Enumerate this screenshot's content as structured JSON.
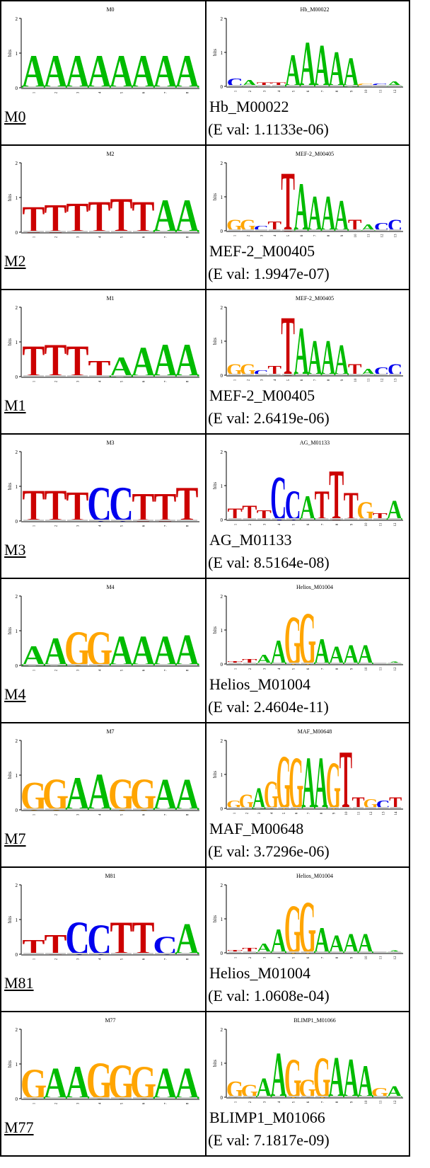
{
  "rows": [
    {
      "motif": {
        "title": "M0",
        "label": "M0",
        "letters": [
          [
            "A",
            1.0
          ],
          [
            "A",
            1.0
          ],
          [
            "A",
            1.0
          ],
          [
            "A",
            1.0
          ],
          [
            "A",
            1.0
          ],
          [
            "A",
            1.0
          ],
          [
            "A",
            1.0
          ],
          [
            "A",
            1.0
          ]
        ]
      },
      "match": {
        "title": "Hb_M00022",
        "name": "Hb_M00022",
        "eval": "(E val: 1.1133e-06)",
        "letters": [
          [
            "C",
            0.25
          ],
          [
            "A",
            0.2
          ],
          [
            "T",
            0.12
          ],
          [
            "T",
            0.12
          ],
          [
            "A",
            1.0
          ],
          [
            "A",
            1.4
          ],
          [
            "A",
            1.3
          ],
          [
            "A",
            1.1
          ],
          [
            "A",
            0.9
          ],
          [
            "G",
            0.1
          ],
          [
            "C",
            0.1
          ],
          [
            "A",
            0.15
          ]
        ]
      }
    },
    {
      "motif": {
        "title": "M2",
        "label": "M2",
        "letters": [
          [
            "T",
            0.8
          ],
          [
            "T",
            0.85
          ],
          [
            "T",
            0.9
          ],
          [
            "T",
            0.95
          ],
          [
            "T",
            1.05
          ],
          [
            "T",
            0.95
          ],
          [
            "A",
            1.0
          ],
          [
            "A",
            1.0
          ]
        ]
      },
      "match": {
        "title": "MEF-2_M00405",
        "name": "MEF-2_M00405",
        "eval": "(E val: 1.9947e-07)",
        "letters": [
          [
            "G",
            0.35
          ],
          [
            "G",
            0.35
          ],
          [
            "C",
            0.15
          ],
          [
            "T",
            0.3
          ],
          [
            "T",
            1.85
          ],
          [
            "A",
            1.5
          ],
          [
            "A",
            1.1
          ],
          [
            "A",
            1.1
          ],
          [
            "A",
            0.95
          ],
          [
            "T",
            0.35
          ],
          [
            "A",
            0.2
          ],
          [
            "C",
            0.25
          ],
          [
            "C",
            0.35
          ]
        ]
      }
    },
    {
      "motif": {
        "title": "M1",
        "label": "M1",
        "letters": [
          [
            "T",
            0.95
          ],
          [
            "T",
            1.0
          ],
          [
            "T",
            0.95
          ],
          [
            "T",
            0.5
          ],
          [
            "A",
            0.6
          ],
          [
            "A",
            0.9
          ],
          [
            "A",
            1.0
          ],
          [
            "A",
            1.0
          ]
        ]
      },
      "match": {
        "title": "MEF-2_M00405",
        "name": "MEF-2_M00405",
        "eval": "(E val: 2.6419e-06)",
        "letters": [
          [
            "G",
            0.35
          ],
          [
            "G",
            0.35
          ],
          [
            "C",
            0.15
          ],
          [
            "T",
            0.3
          ],
          [
            "T",
            1.85
          ],
          [
            "A",
            1.5
          ],
          [
            "A",
            1.1
          ],
          [
            "A",
            1.1
          ],
          [
            "A",
            0.95
          ],
          [
            "T",
            0.35
          ],
          [
            "A",
            0.2
          ],
          [
            "C",
            0.25
          ],
          [
            "C",
            0.35
          ]
        ]
      }
    },
    {
      "motif": {
        "title": "M3",
        "label": "M3",
        "letters": [
          [
            "T",
            0.95
          ],
          [
            "T",
            0.95
          ],
          [
            "T",
            0.9
          ],
          [
            "C",
            1.05
          ],
          [
            "C",
            1.05
          ],
          [
            "T",
            0.85
          ],
          [
            "T",
            0.85
          ],
          [
            "T",
            1.05
          ]
        ]
      },
      "match": {
        "title": "AG_M01133",
        "name": "AG_M01133",
        "eval": "(E val: 8.5164e-08)",
        "letters": [
          [
            "T",
            0.35
          ],
          [
            "T",
            0.45
          ],
          [
            "T",
            0.3
          ],
          [
            "C",
            1.35
          ],
          [
            "C",
            0.9
          ],
          [
            "A",
            0.75
          ],
          [
            "T",
            0.9
          ],
          [
            "T",
            1.55
          ],
          [
            "T",
            0.85
          ],
          [
            "G",
            0.55
          ],
          [
            "T",
            0.2
          ],
          [
            "A",
            0.6
          ]
        ]
      }
    },
    {
      "motif": {
        "title": "M4",
        "label": "M4",
        "letters": [
          [
            "A",
            0.6
          ],
          [
            "A",
            0.85
          ],
          [
            "G",
            1.05
          ],
          [
            "G",
            1.05
          ],
          [
            "A",
            0.9
          ],
          [
            "A",
            0.9
          ],
          [
            "A",
            0.9
          ],
          [
            "A",
            0.95
          ]
        ]
      },
      "match": {
        "title": "Helios_M01004",
        "name": "Helios_M01004",
        "eval": "(E val: 2.4604e-11)",
        "letters": [
          [
            "T",
            0.1
          ],
          [
            "T",
            0.15
          ],
          [
            "A",
            0.3
          ],
          [
            "A",
            0.75
          ],
          [
            "G",
            1.5
          ],
          [
            "G",
            1.6
          ],
          [
            "A",
            0.8
          ],
          [
            "A",
            0.55
          ],
          [
            "A",
            0.6
          ],
          [
            "A",
            0.6
          ],
          [
            "C",
            0.05
          ],
          [
            "A",
            0.08
          ]
        ]
      }
    },
    {
      "motif": {
        "title": "M7",
        "label": "M7",
        "letters": [
          [
            "G",
            0.85
          ],
          [
            "G",
            0.95
          ],
          [
            "A",
            1.0
          ],
          [
            "A",
            1.1
          ],
          [
            "G",
            0.95
          ],
          [
            "G",
            0.95
          ],
          [
            "A",
            0.95
          ],
          [
            "A",
            0.95
          ]
        ]
      },
      "match": {
        "title": "MAF_M00648",
        "name": "MAF_M00648",
        "eval": "(E val: 3.7296e-06)",
        "letters": [
          [
            "G",
            0.25
          ],
          [
            "G",
            0.45
          ],
          [
            "A",
            0.65
          ],
          [
            "G",
            0.85
          ],
          [
            "G",
            1.65
          ],
          [
            "G",
            1.6
          ],
          [
            "A",
            1.6
          ],
          [
            "A",
            1.6
          ],
          [
            "G",
            1.45
          ],
          [
            "T",
            1.8
          ],
          [
            "T",
            0.35
          ],
          [
            "G",
            0.3
          ],
          [
            "C",
            0.25
          ],
          [
            "T",
            0.35
          ]
        ]
      }
    },
    {
      "motif": {
        "title": "M81",
        "label": "M81",
        "letters": [
          [
            "T",
            0.45
          ],
          [
            "T",
            0.6
          ],
          [
            "C",
            1.0
          ],
          [
            "C",
            0.9
          ],
          [
            "T",
            1.0
          ],
          [
            "T",
            1.0
          ],
          [
            "C",
            0.55
          ],
          [
            "A",
            0.95
          ]
        ]
      },
      "match": {
        "title": "Helios_M01004",
        "name": "Helios_M01004",
        "eval": "(E val: 1.0608e-04)",
        "letters": [
          [
            "T",
            0.1
          ],
          [
            "T",
            0.15
          ],
          [
            "A",
            0.3
          ],
          [
            "A",
            0.75
          ],
          [
            "G",
            1.5
          ],
          [
            "G",
            1.6
          ],
          [
            "A",
            0.8
          ],
          [
            "A",
            0.55
          ],
          [
            "A",
            0.6
          ],
          [
            "A",
            0.6
          ],
          [
            "C",
            0.05
          ],
          [
            "A",
            0.08
          ]
        ]
      }
    },
    {
      "motif": {
        "title": "M77",
        "label": "M77",
        "letters": [
          [
            "G",
            0.9
          ],
          [
            "A",
            0.95
          ],
          [
            "A",
            1.0
          ],
          [
            "G",
            1.1
          ],
          [
            "G",
            1.05
          ],
          [
            "G",
            1.0
          ],
          [
            "A",
            0.95
          ],
          [
            "A",
            0.95
          ]
        ]
      },
      "match": {
        "title": "BLIMP1_M01066",
        "name": "BLIMP1_M01066",
        "eval": "(E val: 7.1817e-09)",
        "letters": [
          [
            "G",
            0.5
          ],
          [
            "G",
            0.4
          ],
          [
            "A",
            0.6
          ],
          [
            "A",
            1.4
          ],
          [
            "G",
            1.2
          ],
          [
            "G",
            0.55
          ],
          [
            "G",
            1.25
          ],
          [
            "A",
            1.25
          ],
          [
            "A",
            1.2
          ],
          [
            "A",
            1.0
          ],
          [
            "G",
            0.3
          ],
          [
            "A",
            0.35
          ]
        ]
      }
    }
  ],
  "colors": {
    "A": "#00bb00",
    "C": "#0000ee",
    "G": "#ffa500",
    "T": "#cc0000"
  },
  "axis": {
    "ylabel": "bits",
    "ticks": [
      "0",
      "1",
      "2"
    ]
  }
}
